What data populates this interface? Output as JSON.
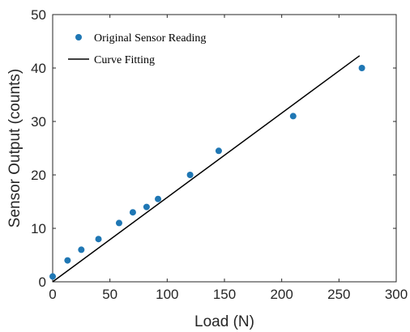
{
  "chart_data": {
    "type": "scatter",
    "xlabel": "Load (N)",
    "ylabel": "Sensor Output (counts)",
    "xlim": [
      0,
      300
    ],
    "ylim": [
      0,
      50
    ],
    "x_ticks": [
      0,
      50,
      100,
      150,
      200,
      250,
      300
    ],
    "y_ticks": [
      0,
      10,
      20,
      30,
      40,
      50
    ],
    "grid": false,
    "legend_position": "top-left",
    "series": [
      {
        "name": "Original Sensor Reading",
        "type": "scatter",
        "color": "#1f77b4",
        "points": [
          {
            "x": 0,
            "y": 1
          },
          {
            "x": 13,
            "y": 4
          },
          {
            "x": 25,
            "y": 6
          },
          {
            "x": 40,
            "y": 8
          },
          {
            "x": 58,
            "y": 11
          },
          {
            "x": 70,
            "y": 13
          },
          {
            "x": 82,
            "y": 14
          },
          {
            "x": 92,
            "y": 15.5
          },
          {
            "x": 120,
            "y": 20
          },
          {
            "x": 145,
            "y": 24.5
          },
          {
            "x": 210,
            "y": 31
          },
          {
            "x": 270,
            "y": 40
          }
        ]
      },
      {
        "name": "Curve Fitting",
        "type": "line",
        "color": "#000000",
        "points": [
          {
            "x": 0,
            "y": 0
          },
          {
            "x": 268,
            "y": 42.3
          }
        ]
      }
    ]
  }
}
